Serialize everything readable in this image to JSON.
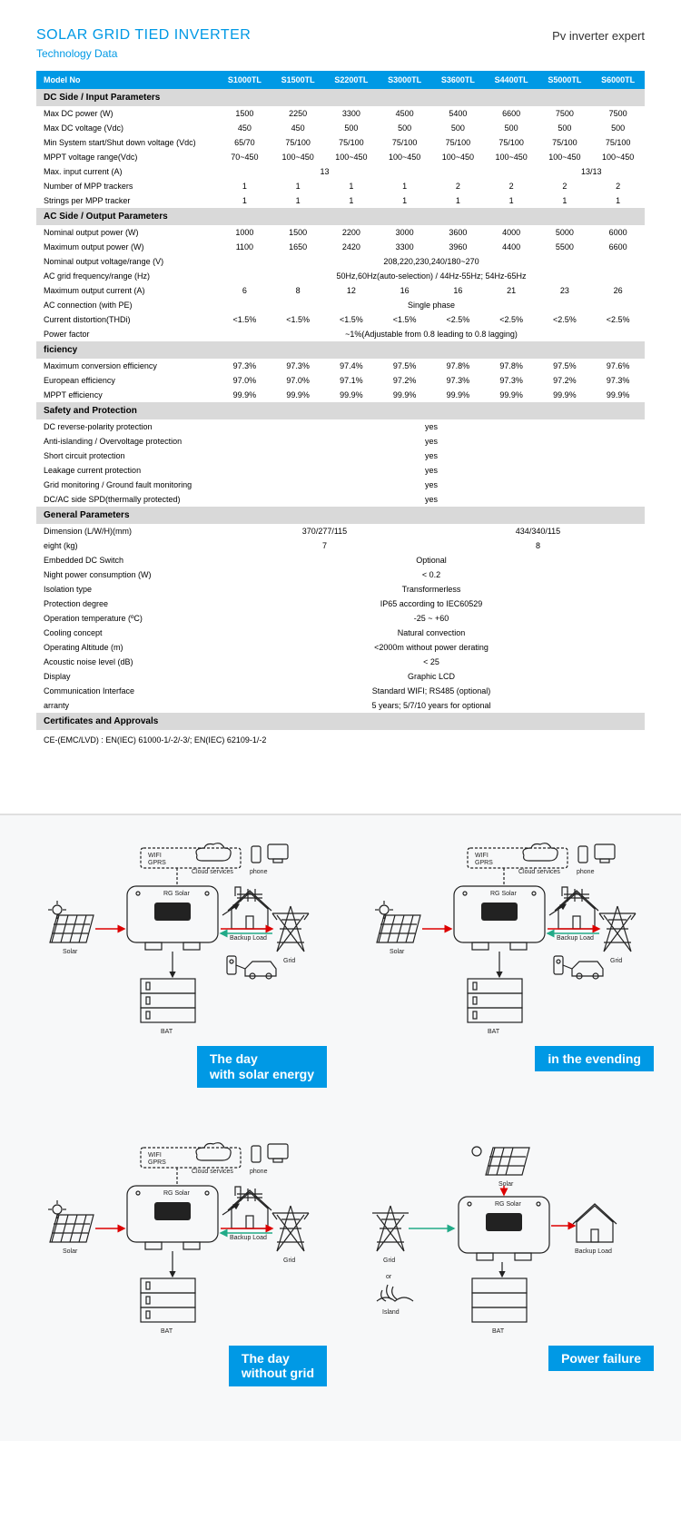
{
  "header": {
    "title": "SOLAR GRID TIED INVERTER",
    "subtitle": "Technology Data",
    "right": "Pv inverter expert"
  },
  "model_header": "Model No",
  "models": [
    "S1000TL",
    "S1500TL",
    "S2200TL",
    "S3000TL",
    "S3600TL",
    "S4400TL",
    "S5000TL",
    "S6000TL"
  ],
  "sections": [
    {
      "title": "DC Side / Input Parameters",
      "rows": [
        {
          "label": "Max DC power (W)",
          "cells": [
            "1500",
            "2250",
            "3300",
            "4500",
            "5400",
            "6600",
            "7500",
            "7500"
          ]
        },
        {
          "label": "Max DC voltage (Vdc)",
          "cells": [
            "450",
            "450",
            "500",
            "500",
            "500",
            "500",
            "500",
            "500"
          ]
        },
        {
          "label": "Min System start/Shut down voltage (Vdc)",
          "cells": [
            "65/70",
            "75/100",
            "75/100",
            "75/100",
            "75/100",
            "75/100",
            "75/100",
            "75/100"
          ]
        },
        {
          "label": "MPPT voltage range(Vdc)",
          "cells": [
            "70~450",
            "100~450",
            "100~450",
            "100~450",
            "100~450",
            "100~450",
            "100~450",
            "100~450"
          ]
        },
        {
          "label": "Max. input current (A)",
          "spans": [
            {
              "text": "13",
              "span": 4
            },
            {
              "text": "",
              "span": 2
            },
            {
              "text": "13/13",
              "span": 2
            }
          ]
        },
        {
          "label": "Number of MPP trackers",
          "cells": [
            "1",
            "1",
            "1",
            "1",
            "2",
            "2",
            "2",
            "2"
          ]
        },
        {
          "label": "Strings per MPP tracker",
          "cells": [
            "1",
            "1",
            "1",
            "1",
            "1",
            "1",
            "1",
            "1"
          ]
        }
      ]
    },
    {
      "title": "AC Side / Output Parameters",
      "rows": [
        {
          "label": "Nominal output power (W)",
          "cells": [
            "1000",
            "1500",
            "2200",
            "3000",
            "3600",
            "4000",
            "5000",
            "6000"
          ]
        },
        {
          "label": "Maximum output power (W)",
          "cells": [
            "1100",
            "1650",
            "2420",
            "3300",
            "3960",
            "4400",
            "5500",
            "6600"
          ]
        },
        {
          "label": "Nominal output voltage/range (V)",
          "merged": "208,220,230,240/180~270"
        },
        {
          "label": "AC grid frequency/range (Hz)",
          "merged": "50Hz,60Hz(auto-selection) / 44Hz-55Hz; 54Hz-65Hz"
        },
        {
          "label": "Maximum output current (A)",
          "cells": [
            "6",
            "8",
            "12",
            "16",
            "16",
            "21",
            "23",
            "26"
          ]
        },
        {
          "label": "AC connection (with PE)",
          "merged": "Single phase"
        },
        {
          "label": "Current distortion(THDi)",
          "cells": [
            "<1.5%",
            "<1.5%",
            "<1.5%",
            "<1.5%",
            "<2.5%",
            "<2.5%",
            "<2.5%",
            "<2.5%"
          ]
        },
        {
          "label": "Power factor",
          "merged": "~1%(Adjustable from 0.8 leading to 0.8 lagging)"
        }
      ]
    },
    {
      "title": "   ficiency",
      "rows": [
        {
          "label": "Maximum conversion efficiency",
          "cells": [
            "97.3%",
            "97.3%",
            "97.4%",
            "97.5%",
            "97.8%",
            "97.8%",
            "97.5%",
            "97.6%"
          ]
        },
        {
          "label": "European efficiency",
          "cells": [
            "97.0%",
            "97.0%",
            "97.1%",
            "97.2%",
            "97.3%",
            "97.3%",
            "97.2%",
            "97.3%"
          ]
        },
        {
          "label": "MPPT efficiency",
          "cells": [
            "99.9%",
            "99.9%",
            "99.9%",
            "99.9%",
            "99.9%",
            "99.9%",
            "99.9%",
            "99.9%"
          ]
        }
      ]
    },
    {
      "title": "Safety and Protection",
      "rows": [
        {
          "label": "DC reverse-polarity protection",
          "merged": "yes"
        },
        {
          "label": "Anti-islanding / Overvoltage protection",
          "merged": "yes"
        },
        {
          "label": "Short circuit protection",
          "merged": "yes"
        },
        {
          "label": "Leakage current protection",
          "merged": "yes"
        },
        {
          "label": "Grid monitoring / Ground fault monitoring",
          "merged": "yes"
        },
        {
          "label": "DC/AC side SPD(thermally protected)",
          "merged": "yes"
        }
      ]
    },
    {
      "title": "General Parameters",
      "rows": [
        {
          "label": "Dimension (L/W/H)(mm)",
          "spans": [
            {
              "text": "370/277/115",
              "span": 4
            },
            {
              "text": "434/340/115",
              "span": 4
            }
          ]
        },
        {
          "label": "   eight (kg)",
          "spans": [
            {
              "text": "7",
              "span": 4
            },
            {
              "text": "8",
              "span": 4
            }
          ]
        },
        {
          "label": "Embedded DC Switch",
          "merged": "Optional"
        },
        {
          "label": "Night power consumption (W)",
          "merged": "< 0.2"
        },
        {
          "label": "Isolation type",
          "merged": "Transformerless"
        },
        {
          "label": "Protection degree",
          "merged": "IP65 according to IEC60529"
        },
        {
          "label": "Operation temperature (ºC)",
          "merged": "-25 ~ +60"
        },
        {
          "label": "Cooling concept",
          "merged": "Natural convection"
        },
        {
          "label": "Operating Altitude (m)",
          "merged": "<2000m without power derating"
        },
        {
          "label": "Acoustic noise level (dB)",
          "merged": "< 25"
        },
        {
          "label": "Display",
          "merged": "Graphic LCD"
        },
        {
          "label": "Communication Interface",
          "merged": "Standard WIFI; RS485 (optional)"
        },
        {
          "label": "   arranty",
          "merged": "5 years; 5/7/10 years for optional"
        }
      ]
    },
    {
      "title": "Certificates and Approvals",
      "rows": []
    }
  ],
  "cert_text": "CE-(EMC/LVD) : EN(IEC) 61000-1/-2/-3/; EN(IEC) 62109-1/-2",
  "diagrams": [
    {
      "caption1": "The day",
      "caption2": "with solar energy"
    },
    {
      "caption1": "",
      "caption2": "in the evending"
    },
    {
      "caption1": "The day",
      "caption2": "without grid"
    },
    {
      "caption1": "",
      "caption2": "Power failure"
    }
  ],
  "diagram_labels": {
    "wifi": "WIFI",
    "gprs": "GPRS",
    "cloud": "Cloud services",
    "phone": "phone",
    "solar": "Solar",
    "backup": "Backup Load",
    "grid": "Grid",
    "bat": "BAT",
    "or": "or",
    "island": "Island",
    "brand": "RG Solar"
  },
  "colors": {
    "primary": "#0099e5",
    "section_bg": "#d9d9d9",
    "diagram_bg": "#f7f8f9",
    "arrow_red": "#d00",
    "arrow_green": "#2a8",
    "text": "#222"
  }
}
